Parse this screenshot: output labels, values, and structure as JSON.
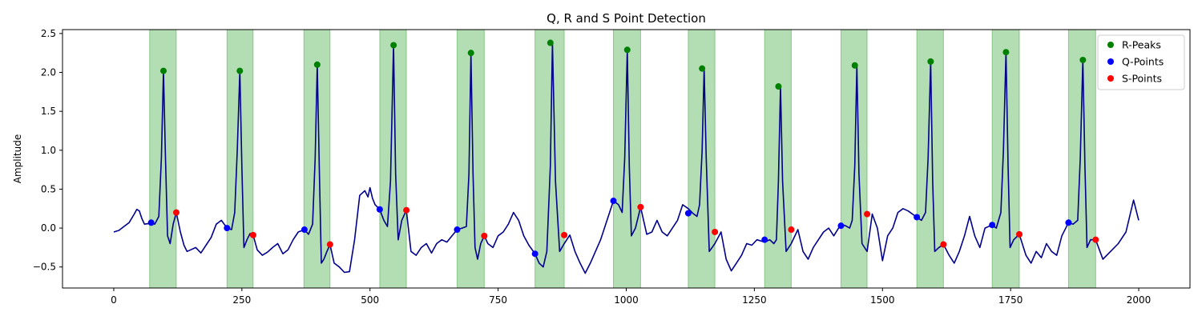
{
  "chart_data": {
    "type": "line",
    "title": "Q, R and S Point Detection",
    "xlabel": "",
    "ylabel": "Amplitude",
    "xlim": [
      -100,
      2100
    ],
    "ylim": [
      -0.77,
      2.55
    ],
    "xticks": [
      0,
      250,
      500,
      750,
      1000,
      1250,
      1500,
      1750,
      2000
    ],
    "yticks": [
      -0.5,
      0.0,
      0.5,
      1.0,
      1.5,
      2.0,
      2.5
    ],
    "ytick_labels": [
      "−0.5",
      "0.0",
      "0.5",
      "1.0",
      "1.5",
      "2.0",
      "2.5"
    ],
    "grid": false,
    "legend_position": "top-right",
    "colors": {
      "signal": "#00008b",
      "band": "#2ca02c",
      "r_peaks": "#008000",
      "q_points": "#0000ff",
      "s_points": "#ff0000"
    },
    "qrs_regions": [
      [
        70,
        122
      ],
      [
        221,
        272
      ],
      [
        371,
        422
      ],
      [
        519,
        571
      ],
      [
        670,
        723
      ],
      [
        822,
        879
      ],
      [
        975,
        1028
      ],
      [
        1121,
        1173
      ],
      [
        1270,
        1322
      ],
      [
        1419,
        1470
      ],
      [
        1567,
        1619
      ],
      [
        1714,
        1767
      ],
      [
        1863,
        1916
      ]
    ],
    "legend": [
      {
        "label": "R-Peaks",
        "series": "r_peaks"
      },
      {
        "label": "Q-Points",
        "series": "q_points"
      },
      {
        "label": "S-Points",
        "series": "s_points"
      }
    ],
    "r_peaks": {
      "x": [
        97,
        246,
        397,
        546,
        697,
        852,
        1002,
        1148,
        1297,
        1446,
        1594,
        1741,
        1891
      ],
      "y": [
        2.02,
        2.02,
        2.1,
        2.35,
        2.25,
        2.38,
        2.29,
        2.05,
        1.82,
        2.09,
        2.14,
        2.26,
        2.16
      ]
    },
    "q_points": {
      "x": [
        73,
        221,
        372,
        519,
        670,
        822,
        975,
        1121,
        1270,
        1419,
        1567,
        1714,
        1863
      ],
      "y": [
        0.07,
        0.0,
        -0.02,
        0.24,
        -0.02,
        -0.33,
        0.35,
        0.19,
        -0.15,
        0.03,
        0.14,
        0.04,
        0.07
      ]
    },
    "s_points": {
      "x": [
        122,
        272,
        422,
        571,
        723,
        879,
        1028,
        1173,
        1322,
        1470,
        1619,
        1767,
        1916
      ],
      "y": [
        0.2,
        -0.09,
        -0.21,
        0.23,
        -0.1,
        -0.09,
        0.27,
        -0.05,
        -0.02,
        0.18,
        -0.21,
        -0.08,
        -0.15
      ]
    },
    "signal": {
      "x": [
        0,
        10,
        20,
        30,
        40,
        45,
        50,
        55,
        60,
        70,
        73,
        80,
        88,
        93,
        97,
        101,
        105,
        110,
        116,
        122,
        130,
        137,
        143,
        150,
        160,
        170,
        180,
        190,
        200,
        210,
        221,
        230,
        236,
        241,
        246,
        250,
        254,
        260,
        266,
        272,
        280,
        290,
        300,
        310,
        320,
        330,
        340,
        350,
        360,
        372,
        380,
        388,
        393,
        397,
        401,
        405,
        410,
        416,
        422,
        430,
        440,
        450,
        460,
        470,
        480,
        490,
        496,
        500,
        505,
        510,
        519,
        527,
        534,
        540,
        546,
        550,
        555,
        562,
        571,
        580,
        590,
        600,
        610,
        620,
        630,
        640,
        650,
        660,
        670,
        680,
        688,
        693,
        697,
        701,
        705,
        710,
        716,
        723,
        730,
        740,
        750,
        760,
        770,
        780,
        790,
        800,
        810,
        822,
        830,
        838,
        845,
        852,
        856,
        862,
        870,
        879,
        890,
        900,
        910,
        920,
        930,
        940,
        950,
        960,
        975,
        985,
        992,
        997,
        1002,
        1006,
        1010,
        1018,
        1028,
        1040,
        1050,
        1060,
        1070,
        1080,
        1090,
        1100,
        1110,
        1121,
        1130,
        1138,
        1143,
        1148,
        1152,
        1156,
        1162,
        1173,
        1185,
        1195,
        1205,
        1215,
        1225,
        1235,
        1245,
        1255,
        1270,
        1280,
        1288,
        1293,
        1297,
        1301,
        1305,
        1312,
        1322,
        1335,
        1345,
        1355,
        1365,
        1375,
        1385,
        1395,
        1405,
        1419,
        1428,
        1436,
        1441,
        1446,
        1450,
        1454,
        1460,
        1470,
        1480,
        1490,
        1500,
        1510,
        1520,
        1530,
        1540,
        1550,
        1567,
        1576,
        1584,
        1589,
        1594,
        1598,
        1602,
        1610,
        1619,
        1630,
        1640,
        1650,
        1660,
        1670,
        1680,
        1690,
        1700,
        1714,
        1722,
        1731,
        1736,
        1741,
        1745,
        1749,
        1756,
        1767,
        1780,
        1790,
        1800,
        1810,
        1820,
        1830,
        1840,
        1850,
        1863,
        1872,
        1881,
        1886,
        1891,
        1895,
        1899,
        1906,
        1916,
        1930,
        1945,
        1960,
        1975,
        1990,
        2000
      ],
      "y": [
        -0.05,
        -0.03,
        0.02,
        0.07,
        0.18,
        0.24,
        0.22,
        0.12,
        0.05,
        0.06,
        0.07,
        0.05,
        0.15,
        0.9,
        2.02,
        0.9,
        -0.1,
        -0.2,
        0.05,
        0.2,
        -0.05,
        -0.22,
        -0.3,
        -0.28,
        -0.25,
        -0.32,
        -0.22,
        -0.12,
        0.05,
        0.1,
        0.0,
        -0.02,
        0.2,
        1.0,
        2.02,
        0.8,
        -0.25,
        -0.15,
        -0.07,
        -0.09,
        -0.28,
        -0.35,
        -0.31,
        -0.25,
        -0.2,
        -0.33,
        -0.28,
        -0.15,
        -0.05,
        -0.02,
        -0.08,
        0.05,
        0.9,
        2.1,
        0.8,
        -0.45,
        -0.4,
        -0.3,
        -0.21,
        -0.45,
        -0.5,
        -0.57,
        -0.56,
        -0.15,
        0.42,
        0.48,
        0.4,
        0.52,
        0.38,
        0.3,
        0.24,
        0.1,
        0.02,
        0.6,
        2.35,
        0.7,
        -0.15,
        0.1,
        0.23,
        -0.3,
        -0.35,
        -0.25,
        -0.2,
        -0.32,
        -0.2,
        -0.15,
        -0.18,
        -0.1,
        -0.02,
        0.0,
        0.02,
        0.7,
        2.25,
        0.7,
        -0.25,
        -0.4,
        -0.2,
        -0.1,
        -0.2,
        -0.25,
        -0.1,
        -0.05,
        0.05,
        0.2,
        0.1,
        -0.1,
        -0.22,
        -0.33,
        -0.45,
        -0.5,
        -0.3,
        0.8,
        2.38,
        0.6,
        -0.3,
        -0.2,
        -0.09,
        -0.3,
        -0.45,
        -0.58,
        -0.45,
        -0.3,
        -0.15,
        0.05,
        0.35,
        0.3,
        0.2,
        0.9,
        2.29,
        0.8,
        -0.1,
        0.0,
        0.27,
        -0.08,
        -0.05,
        0.1,
        -0.05,
        -0.1,
        0.0,
        0.1,
        0.3,
        0.25,
        0.19,
        0.15,
        0.3,
        1.0,
        2.05,
        0.9,
        -0.3,
        -0.2,
        -0.05,
        -0.4,
        -0.55,
        -0.45,
        -0.35,
        -0.2,
        -0.22,
        -0.15,
        -0.18,
        -0.15,
        -0.2,
        -0.15,
        0.6,
        1.82,
        0.6,
        -0.3,
        -0.2,
        -0.02,
        -0.3,
        -0.4,
        -0.25,
        -0.15,
        -0.05,
        0.0,
        -0.1,
        0.05,
        0.03,
        0.0,
        0.1,
        0.8,
        2.09,
        0.7,
        -0.2,
        -0.3,
        0.18,
        0.0,
        -0.42,
        -0.1,
        0.0,
        0.2,
        0.25,
        0.22,
        0.14,
        0.1,
        0.2,
        0.9,
        2.14,
        0.6,
        -0.3,
        -0.25,
        -0.21,
        -0.35,
        -0.45,
        -0.3,
        -0.1,
        0.15,
        -0.1,
        -0.25,
        0.0,
        0.04,
        0.0,
        0.2,
        1.0,
        2.26,
        0.8,
        -0.25,
        -0.15,
        -0.08,
        -0.35,
        -0.45,
        -0.3,
        -0.38,
        -0.2,
        -0.3,
        -0.35,
        -0.1,
        0.07,
        0.05,
        0.1,
        0.9,
        2.16,
        0.8,
        -0.25,
        -0.15,
        -0.15,
        -0.4,
        -0.3,
        -0.2,
        -0.05,
        0.36,
        0.1
      ]
    }
  }
}
